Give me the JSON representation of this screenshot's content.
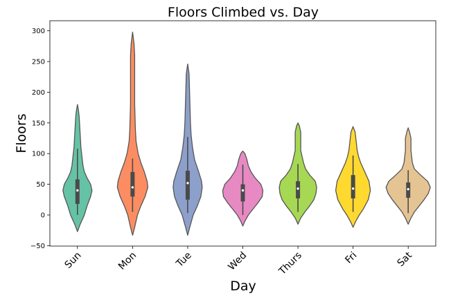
{
  "chart_data": {
    "type": "violin",
    "title": "Floors Climbed vs. Day",
    "xlabel": "Day",
    "ylabel": "Floors",
    "ylim": [
      -50,
      310
    ],
    "yticks": [
      -50,
      0,
      50,
      100,
      150,
      200,
      250,
      300
    ],
    "ytick_labels": [
      "−50",
      "0",
      "50",
      "100",
      "150",
      "200",
      "250",
      "300"
    ],
    "categories": [
      "Sun",
      "Mon",
      "Tue",
      "Wed",
      "Thurs",
      "Fri",
      "Sat"
    ],
    "colors": [
      "#66c2a5",
      "#fc8d62",
      "#8da0cb",
      "#e78ac3",
      "#a6d854",
      "#ffd92f",
      "#e5c494"
    ],
    "violins": [
      {
        "category": "Sun",
        "min": -27,
        "max": 180,
        "whisker_low": 0,
        "q1": 18,
        "median": 40,
        "q3": 58,
        "whisker_high": 108,
        "profile": [
          [
            -27,
            0
          ],
          [
            -15,
            4
          ],
          [
            0,
            10
          ],
          [
            15,
            14
          ],
          [
            30,
            19
          ],
          [
            40,
            21
          ],
          [
            50,
            19
          ],
          [
            60,
            14
          ],
          [
            70,
            10
          ],
          [
            80,
            8
          ],
          [
            90,
            7
          ],
          [
            100,
            6
          ],
          [
            110,
            5
          ],
          [
            120,
            4.5
          ],
          [
            130,
            4
          ],
          [
            140,
            3.5
          ],
          [
            150,
            3
          ],
          [
            160,
            2.5
          ],
          [
            170,
            1.5
          ],
          [
            180,
            0
          ]
        ]
      },
      {
        "category": "Mon",
        "min": -33,
        "max": 298,
        "whisker_low": 5,
        "q1": 30,
        "median": 45,
        "q3": 70,
        "whisker_high": 92,
        "profile": [
          [
            -33,
            0
          ],
          [
            -20,
            3
          ],
          [
            0,
            7
          ],
          [
            15,
            12
          ],
          [
            30,
            18
          ],
          [
            45,
            22
          ],
          [
            55,
            21
          ],
          [
            70,
            17
          ],
          [
            85,
            12
          ],
          [
            100,
            8
          ],
          [
            120,
            5
          ],
          [
            140,
            4
          ],
          [
            160,
            3.5
          ],
          [
            180,
            3
          ],
          [
            200,
            3
          ],
          [
            220,
            3
          ],
          [
            240,
            3
          ],
          [
            260,
            3
          ],
          [
            280,
            2
          ],
          [
            298,
            0
          ]
        ]
      },
      {
        "category": "Tue",
        "min": -33,
        "max": 246,
        "whisker_low": 3,
        "q1": 25,
        "median": 52,
        "q3": 72,
        "whisker_high": 127,
        "profile": [
          [
            -33,
            0
          ],
          [
            -20,
            3
          ],
          [
            0,
            8
          ],
          [
            15,
            14
          ],
          [
            30,
            19
          ],
          [
            45,
            21
          ],
          [
            55,
            20
          ],
          [
            70,
            16
          ],
          [
            90,
            10
          ],
          [
            110,
            7
          ],
          [
            130,
            5
          ],
          [
            150,
            4
          ],
          [
            170,
            3.5
          ],
          [
            190,
            3
          ],
          [
            210,
            2.5
          ],
          [
            230,
            2
          ],
          [
            246,
            0
          ]
        ]
      },
      {
        "category": "Wed",
        "min": -18,
        "max": 104,
        "whisker_low": 0,
        "q1": 22,
        "median": 40,
        "q3": 50,
        "whisker_high": 82,
        "profile": [
          [
            -18,
            0
          ],
          [
            -10,
            3
          ],
          [
            0,
            8
          ],
          [
            10,
            15
          ],
          [
            20,
            22
          ],
          [
            30,
            28
          ],
          [
            40,
            29
          ],
          [
            50,
            26
          ],
          [
            60,
            18
          ],
          [
            70,
            12
          ],
          [
            80,
            8
          ],
          [
            90,
            6
          ],
          [
            100,
            3
          ],
          [
            104,
            0
          ]
        ]
      },
      {
        "category": "Thurs",
        "min": -15,
        "max": 150,
        "whisker_low": 5,
        "q1": 27,
        "median": 43,
        "q3": 55,
        "whisker_high": 83,
        "profile": [
          [
            -15,
            0
          ],
          [
            -5,
            4
          ],
          [
            5,
            10
          ],
          [
            15,
            17
          ],
          [
            25,
            23
          ],
          [
            35,
            26
          ],
          [
            45,
            27
          ],
          [
            55,
            25
          ],
          [
            65,
            17
          ],
          [
            75,
            11
          ],
          [
            85,
            8
          ],
          [
            95,
            6
          ],
          [
            105,
            4
          ],
          [
            120,
            4
          ],
          [
            135,
            4
          ],
          [
            145,
            2
          ],
          [
            150,
            0
          ]
        ]
      },
      {
        "category": "Fri",
        "min": -20,
        "max": 144,
        "whisker_low": 5,
        "q1": 27,
        "median": 43,
        "q3": 65,
        "whisker_high": 97,
        "profile": [
          [
            -20,
            0
          ],
          [
            -10,
            4
          ],
          [
            0,
            9
          ],
          [
            10,
            15
          ],
          [
            25,
            22
          ],
          [
            40,
            25
          ],
          [
            55,
            23
          ],
          [
            70,
            17
          ],
          [
            85,
            11
          ],
          [
            95,
            8
          ],
          [
            105,
            6
          ],
          [
            115,
            5
          ],
          [
            125,
            4
          ],
          [
            135,
            3
          ],
          [
            144,
            0
          ]
        ]
      },
      {
        "category": "Sat",
        "min": -15,
        "max": 142,
        "whisker_low": 3,
        "q1": 28,
        "median": 42,
        "q3": 53,
        "whisker_high": 73,
        "profile": [
          [
            -15,
            0
          ],
          [
            -5,
            4
          ],
          [
            5,
            9
          ],
          [
            15,
            16
          ],
          [
            25,
            23
          ],
          [
            35,
            29
          ],
          [
            45,
            32
          ],
          [
            55,
            28
          ],
          [
            65,
            18
          ],
          [
            75,
            9
          ],
          [
            85,
            6
          ],
          [
            95,
            5
          ],
          [
            105,
            4
          ],
          [
            115,
            4
          ],
          [
            125,
            4
          ],
          [
            135,
            2
          ],
          [
            142,
            0
          ]
        ]
      }
    ]
  }
}
